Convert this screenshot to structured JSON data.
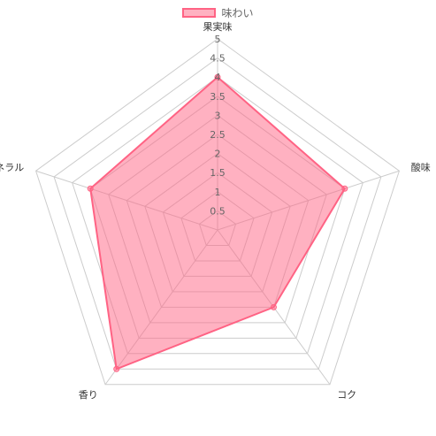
{
  "chart_data": {
    "type": "radar",
    "categories": [
      "果実味",
      "酸味",
      "コク",
      "香り",
      "ミネラル"
    ],
    "series": [
      {
        "name": "味わい",
        "values": [
          4,
          3.5,
          2.5,
          4.5,
          3.5
        ]
      }
    ],
    "r_range": [
      0,
      5
    ],
    "ticks": [
      "0.5",
      "1",
      "1.5",
      "2",
      "2.5",
      "3",
      "3.5",
      "4",
      "4.5",
      "5"
    ],
    "legend_position": "top",
    "grid": true,
    "colors": {
      "fill": "rgba(255, 99, 132, 0.5)",
      "stroke": "#ff6384",
      "grid": "#cccccc"
    }
  }
}
